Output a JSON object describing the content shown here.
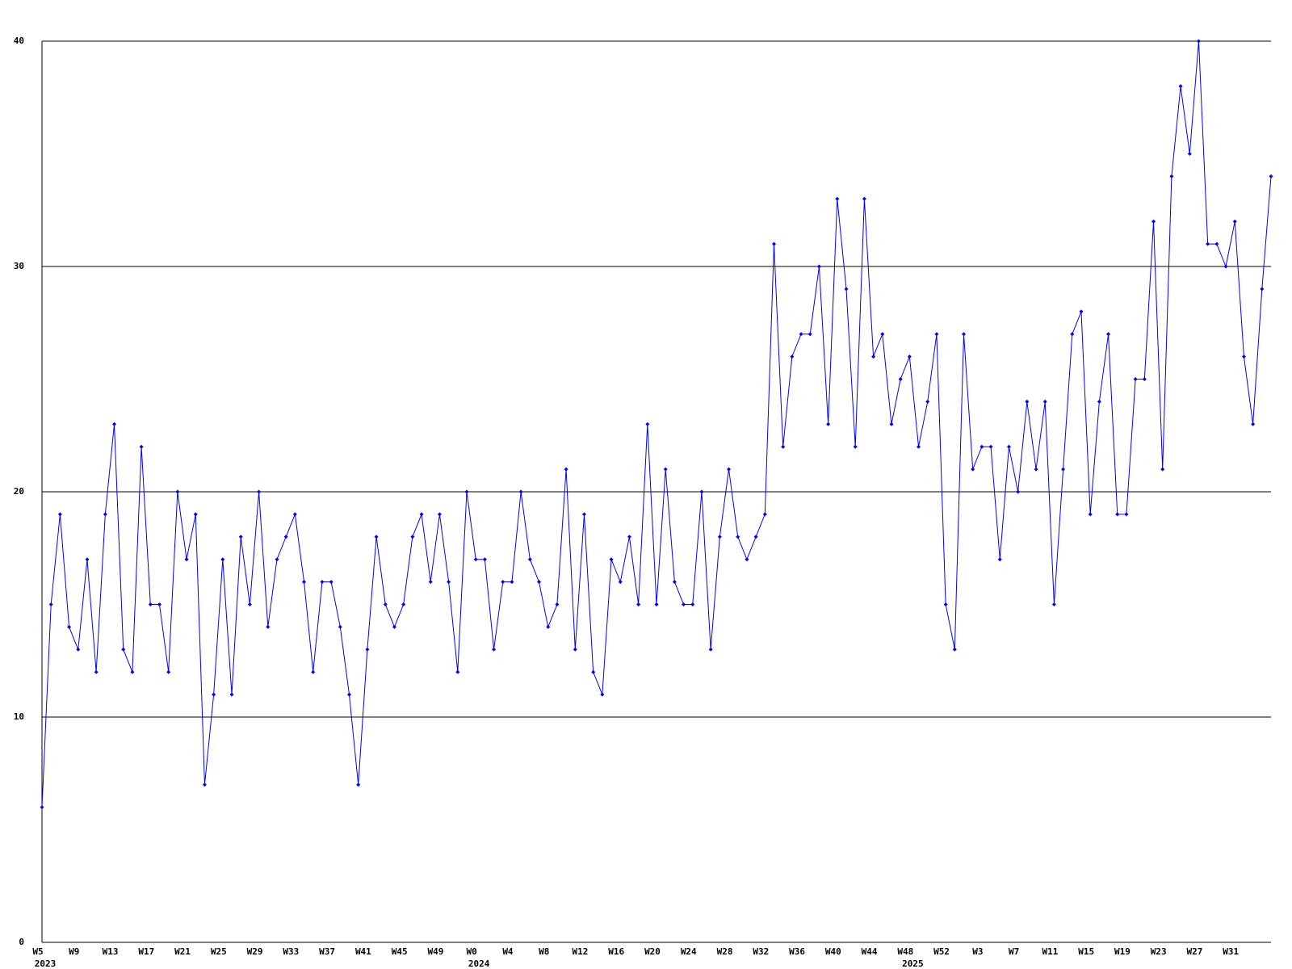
{
  "chart_data": {
    "type": "line",
    "categories": [
      "W5",
      null,
      null,
      null,
      "W9",
      null,
      null,
      null,
      "W13",
      null,
      null,
      null,
      "W17",
      null,
      null,
      null,
      "W21",
      null,
      null,
      null,
      "W25",
      null,
      null,
      null,
      "W29",
      null,
      null,
      null,
      "W33",
      null,
      null,
      null,
      "W37",
      null,
      null,
      null,
      "W41",
      null,
      null,
      null,
      "W45",
      null,
      null,
      null,
      "W49",
      null,
      null,
      null,
      "W0",
      null,
      null,
      null,
      "W4",
      null,
      null,
      null,
      "W8",
      null,
      null,
      null,
      "W12",
      null,
      null,
      null,
      "W16",
      null,
      null,
      null,
      "W20",
      null,
      null,
      null,
      "W24",
      null,
      null,
      null,
      "W28",
      null,
      null,
      null,
      "W32",
      null,
      null,
      null,
      "W36",
      null,
      null,
      null,
      "W40",
      null,
      null,
      null,
      "W44",
      null,
      null,
      null,
      "W48",
      null,
      null,
      null,
      "W52",
      null,
      null,
      null,
      "W3",
      null,
      null,
      null,
      "W7",
      null,
      null,
      null,
      "W11",
      null,
      null,
      null,
      "W15",
      null,
      null,
      null,
      "W19",
      null,
      null,
      null,
      "W23",
      null,
      null,
      null,
      "W27",
      null,
      null,
      null,
      "W31",
      null,
      null,
      null,
      null
    ],
    "years": [
      "2023",
      null,
      null,
      null,
      null,
      null,
      null,
      null,
      null,
      null,
      null,
      null,
      null,
      null,
      null,
      null,
      null,
      null,
      null,
      null,
      null,
      null,
      null,
      null,
      null,
      null,
      null,
      null,
      null,
      null,
      null,
      null,
      null,
      null,
      null,
      null,
      null,
      null,
      null,
      null,
      null,
      null,
      null,
      null,
      null,
      null,
      null,
      null,
      "2024",
      null,
      null,
      null,
      null,
      null,
      null,
      null,
      null,
      null,
      null,
      null,
      null,
      null,
      null,
      null,
      null,
      null,
      null,
      null,
      null,
      null,
      null,
      null,
      null,
      null,
      null,
      null,
      null,
      null,
      null,
      null,
      null,
      null,
      null,
      null,
      null,
      null,
      null,
      null,
      null,
      null,
      null,
      null,
      null,
      null,
      null,
      null,
      "2025",
      null,
      null,
      null,
      null,
      null,
      null,
      null,
      null,
      null,
      null,
      null,
      null,
      null,
      null,
      null,
      null,
      null,
      null,
      null,
      null,
      null,
      null,
      null,
      null,
      null,
      null,
      null,
      null,
      null,
      null,
      null,
      null,
      null,
      null,
      null,
      null,
      null,
      null,
      null,
      null,
      null,
      null,
      null,
      null,
      null,
      null,
      null,
      null,
      null,
      null,
      null,
      null,
      null,
      null,
      null,
      null,
      null,
      null,
      null,
      null,
      null,
      null,
      null,
      null,
      null,
      null,
      null,
      null,
      null,
      null,
      null,
      null,
      null,
      null,
      null,
      null,
      null,
      null,
      null,
      null,
      null,
      null,
      null,
      null,
      null,
      null,
      null,
      null,
      null,
      null,
      null,
      null,
      null,
      null,
      null,
      null,
      null,
      null,
      null
    ],
    "series": [
      {
        "color": "#0000ff",
        "values": [
          6,
          15,
          19,
          14,
          13,
          17,
          12,
          19,
          23,
          13,
          12,
          22,
          15,
          15,
          12,
          20,
          17,
          19,
          7,
          11,
          17,
          11,
          18,
          15,
          20,
          14,
          17,
          18,
          19,
          16,
          12,
          16,
          16,
          14,
          11,
          7,
          13,
          18,
          15,
          14,
          15,
          18,
          19,
          16,
          19,
          16,
          12,
          20,
          17,
          17,
          13,
          16,
          16,
          20,
          17,
          16,
          14,
          15,
          21,
          13,
          19,
          12,
          11,
          17,
          16,
          18,
          15,
          23,
          15,
          21,
          16,
          15,
          15,
          20,
          13,
          18,
          21,
          18,
          17,
          18,
          19,
          31,
          22,
          26,
          27,
          27,
          30,
          23,
          33,
          29,
          22,
          33,
          26,
          27,
          23,
          25,
          26,
          22,
          24,
          27,
          15,
          13,
          27,
          21,
          22,
          22,
          17,
          22,
          20,
          24,
          21,
          24,
          15,
          21,
          27,
          28,
          19,
          24,
          27,
          19,
          19,
          25,
          25,
          32,
          21,
          34,
          38,
          35,
          40,
          31,
          31,
          30,
          32,
          26,
          23,
          29,
          34
        ]
      }
    ],
    "ylim": [
      0,
      40
    ],
    "yticks": [
      0,
      10,
      20,
      30,
      40
    ],
    "grid": true
  }
}
